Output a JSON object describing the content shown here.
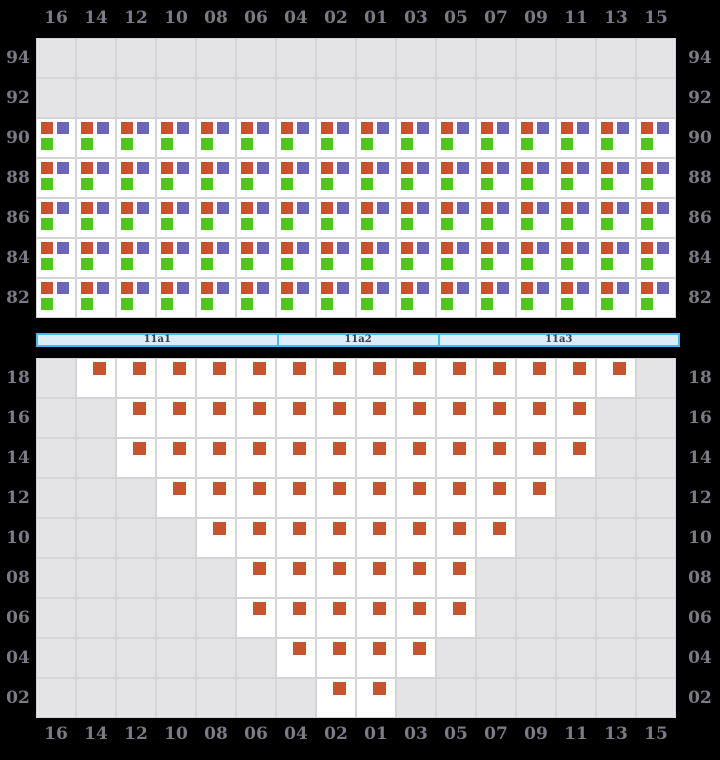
{
  "columns": [
    "16",
    "14",
    "12",
    "10",
    "08",
    "06",
    "04",
    "02",
    "01",
    "03",
    "05",
    "07",
    "09",
    "11",
    "13",
    "15"
  ],
  "deck": {
    "tiers": [
      {
        "label": "94",
        "occupied": false
      },
      {
        "label": "92",
        "occupied": false
      },
      {
        "label": "90",
        "occupied": true
      },
      {
        "label": "88",
        "occupied": true
      },
      {
        "label": "86",
        "occupied": true
      },
      {
        "label": "84",
        "occupied": true
      },
      {
        "label": "82",
        "occupied": true
      }
    ],
    "markers": [
      "orange",
      "purple",
      "green"
    ]
  },
  "hatch_covers": {
    "segments": [
      {
        "label": "11a1",
        "cols": 6
      },
      {
        "label": "11a2",
        "cols": 4
      },
      {
        "label": "11a3",
        "cols": 6
      }
    ]
  },
  "hold": {
    "tiers": [
      {
        "label": "18",
        "span": [
          1,
          14
        ]
      },
      {
        "label": "16",
        "span": [
          2,
          13
        ]
      },
      {
        "label": "14",
        "span": [
          2,
          13
        ]
      },
      {
        "label": "12",
        "span": [
          3,
          12
        ]
      },
      {
        "label": "10",
        "span": [
          4,
          11
        ]
      },
      {
        "label": "08",
        "span": [
          5,
          10
        ]
      },
      {
        "label": "06",
        "span": [
          5,
          10
        ]
      },
      {
        "label": "04",
        "span": [
          6,
          9
        ]
      },
      {
        "label": "02",
        "span": [
          7,
          8
        ]
      }
    ],
    "markers": [
      "orange"
    ]
  },
  "colors": {
    "background": "#000000",
    "cell_empty": "#e4e4e7",
    "cell_occupied": "#ffffff",
    "gridline": "#d4d4d8",
    "marker_orange": "#c9532f",
    "marker_purple": "#6c64b6",
    "marker_green": "#52c41d",
    "hatch_fill": "#dcedfa",
    "hatch_border": "#41bdf4",
    "axis_label": "#7b7b85",
    "hatch_label": "#3c3c44"
  }
}
